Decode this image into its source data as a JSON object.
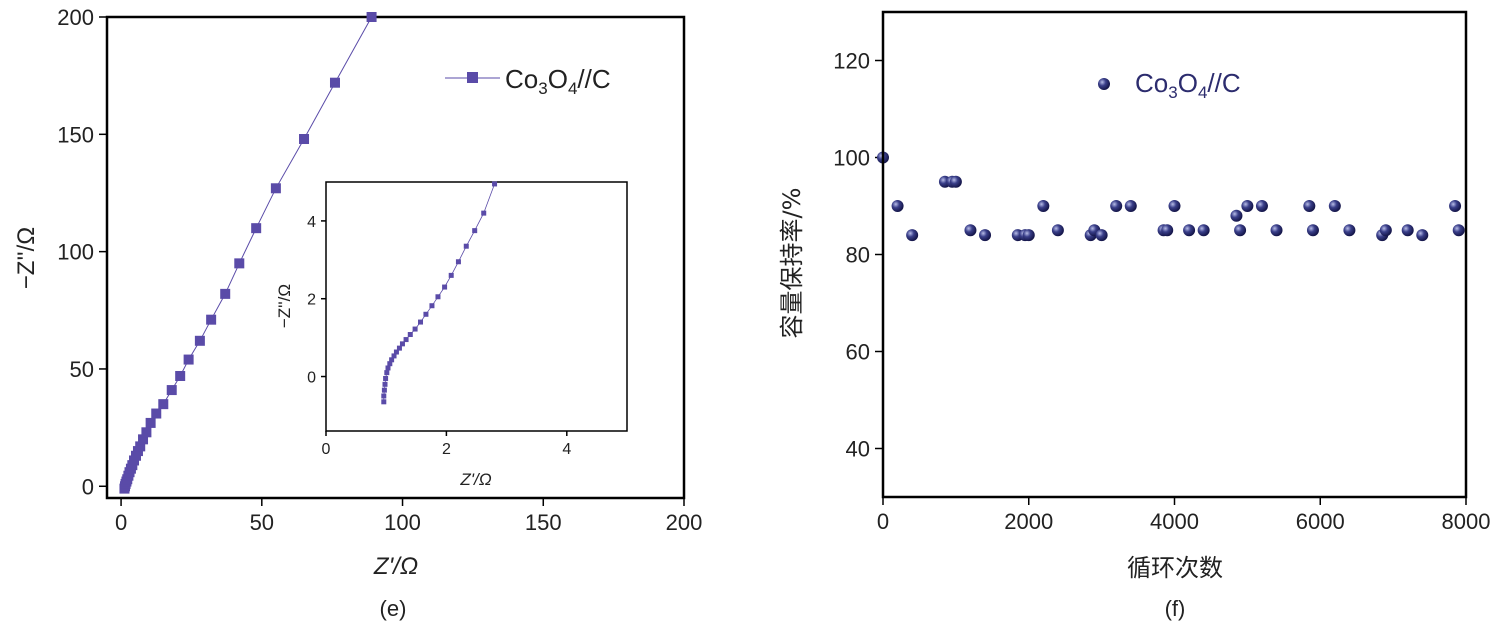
{
  "chart_data": [
    {
      "type": "scatter",
      "panel_label": "(e)",
      "xlabel": "Z'/Ω",
      "ylabel": "−Z''/Ω",
      "xlim": [
        -5,
        200
      ],
      "ylim": [
        -5,
        200
      ],
      "x_ticks": [
        0,
        50,
        100,
        150,
        200
      ],
      "y_ticks": [
        0,
        50,
        100,
        150,
        200
      ],
      "legend_position": "top-right",
      "series": [
        {
          "name": "Co3O4//C",
          "color": "#5a4ba8",
          "marker": "square",
          "line": true,
          "x": [
            1.2,
            1.4,
            1.6,
            1.9,
            2.2,
            2.6,
            3.0,
            3.5,
            4.0,
            4.6,
            5.3,
            6.0,
            6.8,
            7.8,
            9.0,
            10.5,
            12.5,
            15,
            18,
            21,
            24,
            28,
            32,
            37,
            42,
            48,
            55,
            65,
            76,
            89
          ],
          "y": [
            -1,
            0,
            1,
            2,
            3,
            4.5,
            6,
            7.5,
            9,
            11,
            13,
            15,
            17,
            20,
            23,
            27,
            31,
            35,
            41,
            47,
            54,
            62,
            71,
            82,
            95,
            110,
            127,
            148,
            172,
            200
          ]
        }
      ],
      "inset": {
        "xlabel": "Z'/Ω",
        "ylabel": "−Z''/Ω",
        "xlim": [
          0,
          5
        ],
        "ylim": [
          -1.4,
          5
        ],
        "x_ticks": [
          0,
          2,
          4
        ],
        "y_ticks": [
          0,
          2,
          4
        ],
        "x": [
          0.96,
          0.96,
          0.97,
          0.98,
          0.99,
          1.01,
          1.03,
          1.06,
          1.09,
          1.13,
          1.17,
          1.22,
          1.27,
          1.33,
          1.4,
          1.48,
          1.57,
          1.66,
          1.76,
          1.86,
          1.97,
          2.08,
          2.2,
          2.33,
          2.47,
          2.62,
          2.8
        ],
        "y": [
          -0.65,
          -0.5,
          -0.35,
          -0.2,
          -0.05,
          0.1,
          0.22,
          0.33,
          0.43,
          0.53,
          0.63,
          0.73,
          0.84,
          0.95,
          1.08,
          1.22,
          1.4,
          1.6,
          1.82,
          2.05,
          2.3,
          2.6,
          2.95,
          3.35,
          3.75,
          4.2,
          4.95
        ]
      }
    },
    {
      "type": "scatter",
      "panel_label": "(f)",
      "xlabel": "循环次数",
      "ylabel": "容量保持率/%",
      "xlim": [
        0,
        8000
      ],
      "ylim": [
        30,
        130
      ],
      "x_ticks": [
        0,
        2000,
        4000,
        6000,
        8000
      ],
      "y_ticks": [
        40,
        60,
        80,
        100,
        120
      ],
      "legend_position": "top-left",
      "series": [
        {
          "name": "Co3O4//C",
          "color": "#2c2c6e",
          "marker": "sphere",
          "x": [
            0,
            200,
            400,
            850,
            950,
            1000,
            1200,
            1400,
            1850,
            1950,
            2000,
            2200,
            2400,
            2850,
            2900,
            3000,
            3200,
            3400,
            3850,
            3900,
            4000,
            4200,
            4400,
            4850,
            4900,
            5000,
            5200,
            5400,
            5850,
            5900,
            6200,
            6400,
            6850,
            6900,
            7200,
            7400,
            7850,
            7900
          ],
          "y": [
            100,
            90,
            84,
            95,
            95,
            95,
            85,
            84,
            84,
            84,
            84,
            90,
            85,
            84,
            85,
            84,
            90,
            90,
            85,
            85,
            90,
            85,
            85,
            88,
            85,
            90,
            90,
            85,
            90,
            85,
            90,
            85,
            84,
            85,
            85,
            84,
            90,
            85
          ]
        }
      ]
    }
  ]
}
